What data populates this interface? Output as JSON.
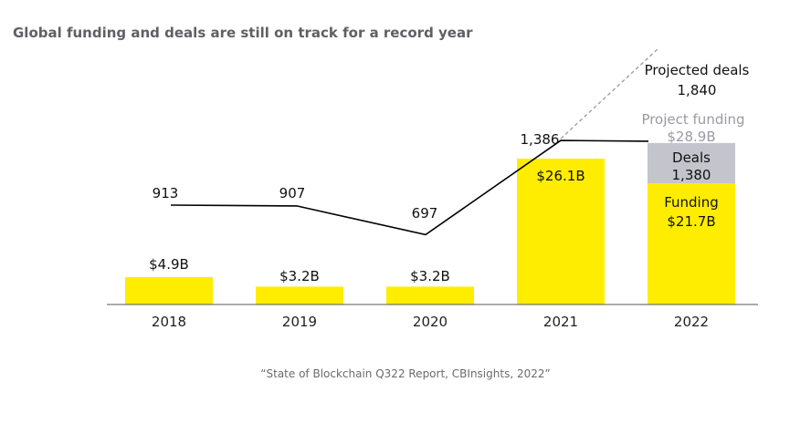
{
  "title": "Global funding and deals are still on track for a record year",
  "source": "“State of Blockchain Q322 Report, CBInsights, 2022”",
  "chart_data": {
    "type": "bar",
    "title": "Global funding and deals are still on track for a record year",
    "xlabel": "",
    "ylabel": "",
    "categories": [
      "2018",
      "2019",
      "2020",
      "2021",
      "2022"
    ],
    "series": [
      {
        "name": "Funding",
        "values": [
          4.9,
          3.2,
          3.2,
          26.1,
          21.7
        ],
        "value_labels": [
          "$4.9B",
          "$3.2B",
          "$3.2B",
          "$26.1B",
          "$21.7B"
        ],
        "color": "#ffed00"
      },
      {
        "name": "Project funding",
        "values": [
          null,
          null,
          null,
          null,
          28.9
        ],
        "value_labels": [
          "",
          "",
          "",
          "",
          "$28.9B"
        ],
        "color": "#c4c4cd"
      },
      {
        "name": "Deals",
        "values": [
          913,
          907,
          697,
          1386,
          1380
        ],
        "value_labels": [
          "913",
          "907",
          "697",
          "1,386",
          "1,380"
        ],
        "color": "#000000"
      },
      {
        "name": "Projected deals",
        "values": [
          null,
          null,
          null,
          1386,
          1840
        ],
        "value_labels": [
          "",
          "",
          "",
          "",
          "1,840"
        ],
        "color": "#9a9a9a"
      }
    ],
    "annotations": {
      "funding_label": "Funding",
      "deals_label": "Deals",
      "project_funding_label": "Project funding",
      "projected_deals_label": "Projected deals"
    },
    "grid": false,
    "legend": "none"
  }
}
